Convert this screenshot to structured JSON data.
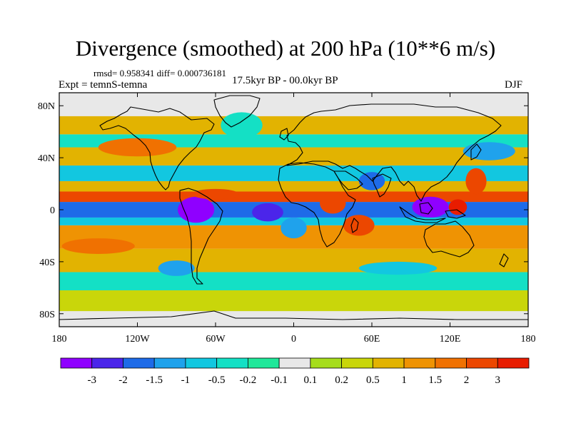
{
  "title": "Divergence (smoothed) at 200 hPa (10**6 m/s)",
  "stats_text": "rmsd= 0.958341 diff= 0.000736181",
  "experiment": "Expt = temnS-temna",
  "period": "17.5kyr BP - 00.0kyr BP",
  "season": "DJF",
  "map": {
    "lon_range": [
      -180,
      180
    ],
    "lat_range": [
      -90,
      90
    ],
    "lat_ticks": [
      {
        "value": 80,
        "label": "80N"
      },
      {
        "value": 40,
        "label": "40N"
      },
      {
        "value": 0,
        "label": "0"
      },
      {
        "value": -40,
        "label": "40S"
      },
      {
        "value": -80,
        "label": "80S"
      }
    ],
    "lon_ticks": [
      {
        "value": -180,
        "label": "180"
      },
      {
        "value": -120,
        "label": "120W"
      },
      {
        "value": -60,
        "label": "60W"
      },
      {
        "value": 0,
        "label": "0"
      },
      {
        "value": 60,
        "label": "60E"
      },
      {
        "value": 120,
        "label": "120E"
      },
      {
        "value": 180,
        "label": "180"
      }
    ],
    "zonal_bands": [
      {
        "lat": [
          -90,
          -78
        ],
        "level": -0.05
      },
      {
        "lat": [
          -78,
          -62
        ],
        "level": 0.3
      },
      {
        "lat": [
          -62,
          -48
        ],
        "level": -0.4
      },
      {
        "lat": [
          -48,
          -30
        ],
        "level": 0.9
      },
      {
        "lat": [
          -30,
          -12
        ],
        "level": 1.3
      },
      {
        "lat": [
          -12,
          -6
        ],
        "level": -0.6
      },
      {
        "lat": [
          -6,
          6
        ],
        "level": -1.8
      },
      {
        "lat": [
          6,
          14
        ],
        "level": 2.3
      },
      {
        "lat": [
          14,
          22
        ],
        "level": 0.7
      },
      {
        "lat": [
          22,
          34
        ],
        "level": -0.6
      },
      {
        "lat": [
          34,
          48
        ],
        "level": 0.8
      },
      {
        "lat": [
          48,
          58
        ],
        "level": -0.3
      },
      {
        "lat": [
          58,
          72
        ],
        "level": 0.6
      },
      {
        "lat": [
          72,
          90
        ],
        "level": -0.05
      }
    ],
    "anomalies": [
      {
        "lon": -75,
        "lat": 0,
        "rx": 14,
        "ry": 10,
        "level": -3.2
      },
      {
        "lon": -20,
        "lat": -2,
        "rx": 12,
        "ry": 7,
        "level": -2.1
      },
      {
        "lon": 105,
        "lat": 2,
        "rx": 14,
        "ry": 8,
        "level": -3.2
      },
      {
        "lon": 126,
        "lat": 2,
        "rx": 7,
        "ry": 6,
        "level": 3.2
      },
      {
        "lon": 140,
        "lat": 22,
        "rx": 8,
        "ry": 10,
        "level": 2.4
      },
      {
        "lon": 30,
        "lat": 5,
        "rx": 10,
        "ry": 8,
        "level": 2.0
      },
      {
        "lon": 50,
        "lat": -12,
        "rx": 12,
        "ry": 8,
        "level": 2.3
      },
      {
        "lon": 0,
        "lat": -14,
        "rx": 10,
        "ry": 8,
        "level": -1.4
      },
      {
        "lon": 60,
        "lat": 22,
        "rx": 10,
        "ry": 7,
        "level": -1.6
      },
      {
        "lon": -150,
        "lat": -28,
        "rx": 28,
        "ry": 6,
        "level": 1.7
      },
      {
        "lon": -120,
        "lat": 48,
        "rx": 30,
        "ry": 7,
        "level": 1.5
      },
      {
        "lon": 150,
        "lat": 45,
        "rx": 20,
        "ry": 7,
        "level": -1.2
      },
      {
        "lon": -90,
        "lat": -45,
        "rx": 14,
        "ry": 6,
        "level": -1.3
      },
      {
        "lon": -60,
        "lat": 12,
        "rx": 18,
        "ry": 4,
        "level": 2.2
      },
      {
        "lon": 80,
        "lat": -45,
        "rx": 30,
        "ry": 5,
        "level": -0.8
      },
      {
        "lon": -40,
        "lat": 65,
        "rx": 16,
        "ry": 10,
        "level": -0.3
      }
    ]
  },
  "colorbar": {
    "colors": [
      "#8f00ff",
      "#4b25ea",
      "#1e6be8",
      "#1fa2ec",
      "#12c7e0",
      "#14e0c5",
      "#20e89a",
      "#e8e8e8",
      "#a6dd1c",
      "#c9d60a",
      "#e2b301",
      "#ef9303",
      "#f07101",
      "#ec4700",
      "#e81c00"
    ],
    "thresholds": [
      -3,
      -2,
      -1.5,
      -1,
      -0.5,
      -0.2,
      -0.1,
      0.1,
      0.2,
      0.5,
      1,
      1.5,
      2,
      3
    ],
    "labels": [
      "-3",
      "-2",
      "-1.5",
      "-1",
      "-0.5",
      "-0.2",
      "-0.1",
      "0.1",
      "0.2",
      "0.5",
      "1",
      "1.5",
      "2",
      "3"
    ]
  }
}
